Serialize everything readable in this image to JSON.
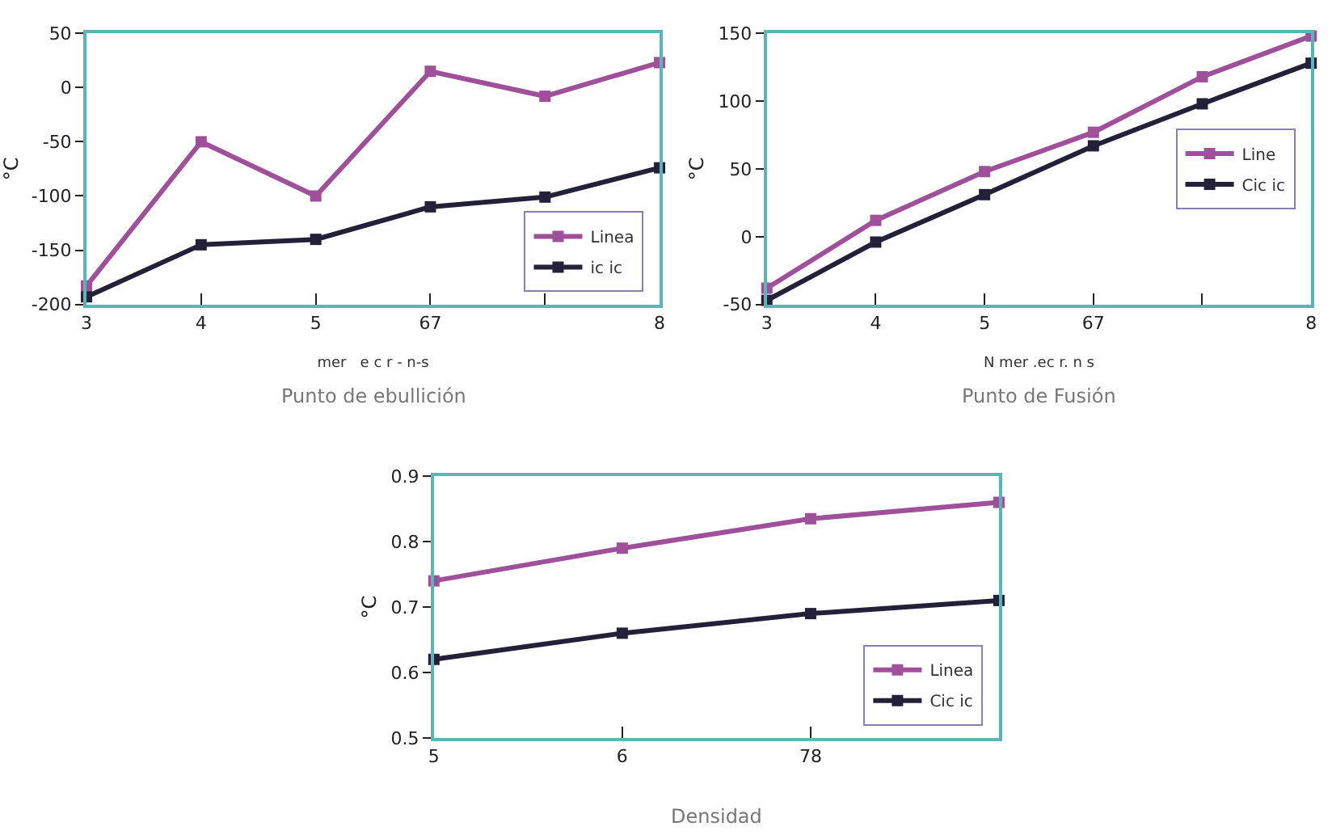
{
  "chart_data": [
    {
      "type": "line",
      "title": "Punto de ebullición",
      "xlabel": "mer   e c r - n-s",
      "ylabel": "°C",
      "categories": [
        "3",
        "4",
        "5",
        "67",
        null,
        "8"
      ],
      "ylim": [
        -200,
        50
      ],
      "yticks": [
        -200,
        -150,
        -100,
        -50,
        0,
        50
      ],
      "marker": "square",
      "line_style": "solid",
      "legend": "bottom right",
      "series": [
        {
          "name": "Linea",
          "color": "#a0509a",
          "values": [
            -183,
            -50,
            -100,
            15,
            -8,
            23
          ]
        },
        {
          "name": "ic ic",
          "color": "#23213a",
          "values": [
            -193,
            -145,
            -140,
            -110,
            -101,
            -74
          ]
        }
      ]
    },
    {
      "type": "line",
      "title": "Punto de Fusión",
      "xlabel": "N mer .ec r. n s",
      "ylabel": "°C",
      "categories": [
        "3",
        "4",
        "5",
        "67",
        null,
        "8"
      ],
      "ylim": [
        -50,
        150
      ],
      "yticks": [
        -50,
        0,
        50,
        100,
        150
      ],
      "marker": "square",
      "line_style": "solid",
      "legend": "right",
      "series": [
        {
          "name": "Line",
          "color": "#a0509a",
          "values": [
            -38,
            12,
            48,
            77,
            118,
            148
          ]
        },
        {
          "name": "Cic ic",
          "color": "#23213a",
          "values": [
            -47,
            -4,
            31,
            67,
            98,
            128
          ]
        }
      ]
    },
    {
      "type": "line",
      "title": "Densidad",
      "ylabel": "°C",
      "categories": [
        "5",
        "6",
        "78",
        null
      ],
      "ylim": [
        0.5,
        0.9
      ],
      "yticks": [
        0.5,
        0.6,
        0.7,
        0.8,
        0.9
      ],
      "marker": "square",
      "line_style": "solid",
      "legend": "bottom right",
      "series": [
        {
          "name": "Linea",
          "color": "#a0509a",
          "values": [
            0.74,
            0.79,
            0.835,
            0.86
          ]
        },
        {
          "name": "Cic ic",
          "color": "#23213a",
          "values": [
            0.62,
            0.66,
            0.69,
            0.71
          ]
        }
      ]
    }
  ]
}
